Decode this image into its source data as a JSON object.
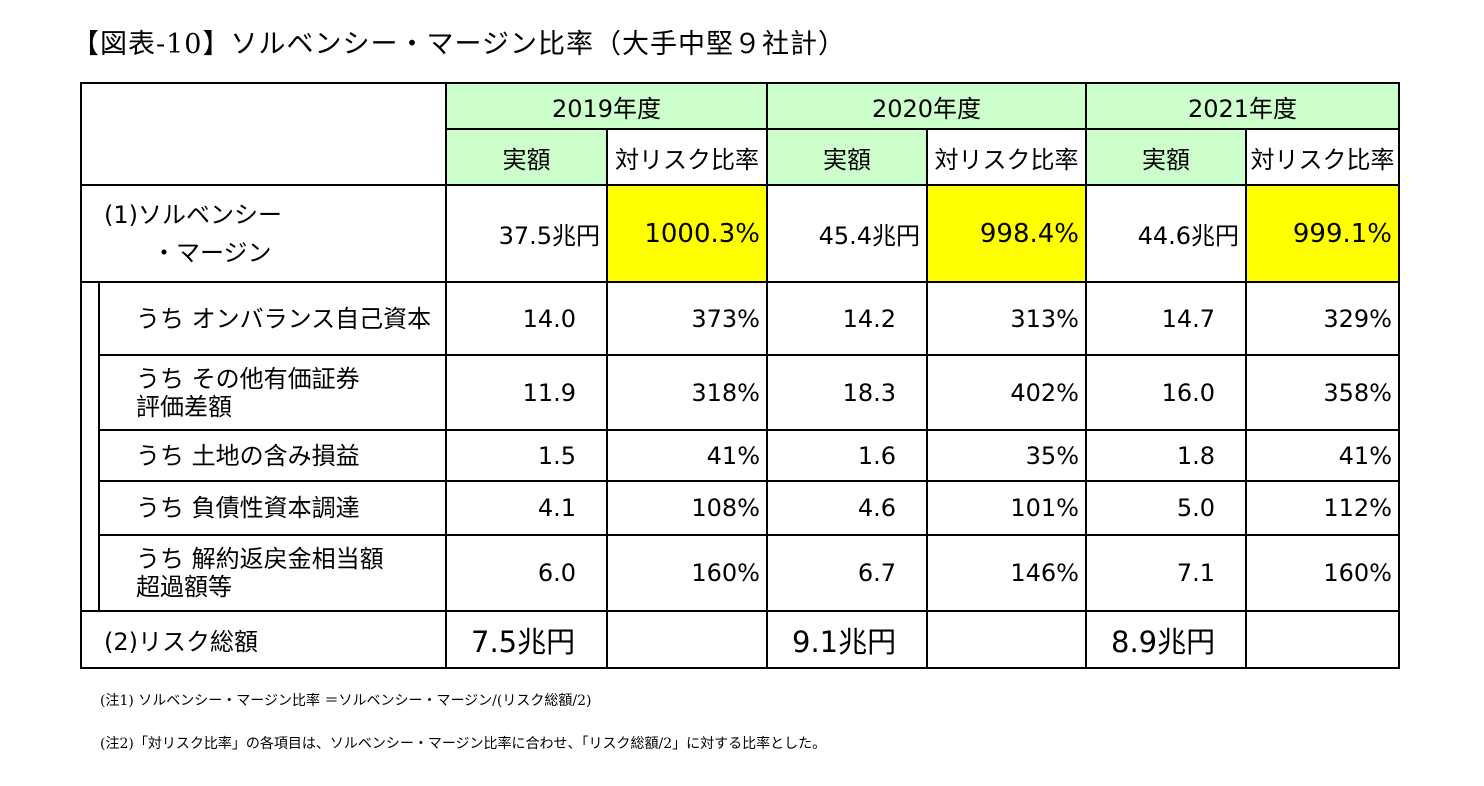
{
  "title": "【図表-10】ソルベンシー・マージン比率（大手中堅９社計）",
  "header": {
    "years": [
      "2019年度",
      "2020年度",
      "2021年度"
    ],
    "actual_label": "実額",
    "ratio_label": "対リスク比率"
  },
  "rows": {
    "solvency": {
      "label_line1": "(1)ソルベンシー",
      "label_line2": "・マージン",
      "values": [
        "37.5兆円",
        "1000.3%",
        "45.4兆円",
        "998.4%",
        "44.6兆円",
        "999.1%"
      ]
    },
    "sub": [
      {
        "label_line1": "うち オンバランス自己資本",
        "label_line2": "",
        "values": [
          "14.0",
          "373%",
          "14.2",
          "313%",
          "14.7",
          "329%"
        ]
      },
      {
        "label_line1": "うち その他有価証券",
        "label_line2": "評価差額",
        "values": [
          "11.9",
          "318%",
          "18.3",
          "402%",
          "16.0",
          "358%"
        ]
      },
      {
        "label_line1": "うち 土地の含み損益",
        "label_line2": "",
        "values": [
          "1.5",
          "41%",
          "1.6",
          "35%",
          "1.8",
          "41%"
        ]
      },
      {
        "label_line1": "うち 負債性資本調達",
        "label_line2": "",
        "values": [
          "4.1",
          "108%",
          "4.6",
          "101%",
          "5.0",
          "112%"
        ]
      },
      {
        "label_line1": "うち 解約返戻金相当額",
        "label_line2": "超過額等",
        "values": [
          "6.0",
          "160%",
          "6.7",
          "146%",
          "7.1",
          "160%"
        ]
      }
    ],
    "risk": {
      "label": "(2)リスク総額",
      "values": [
        "7.5兆円",
        "",
        "9.1兆円",
        "",
        "8.9兆円",
        ""
      ]
    }
  },
  "notes": [
    "(注1) ソルベンシー・マージン比率 ＝ソルベンシー・マージン/(リスク総額/2)",
    "(注2)「対リスク比率」の各項目は、ソルベンシー・マージン比率に合わせ、「リスク総額/2」に対する比率とした。"
  ],
  "colors": {
    "header_green": "#ccffcc",
    "highlight_yellow": "#ffff00"
  }
}
